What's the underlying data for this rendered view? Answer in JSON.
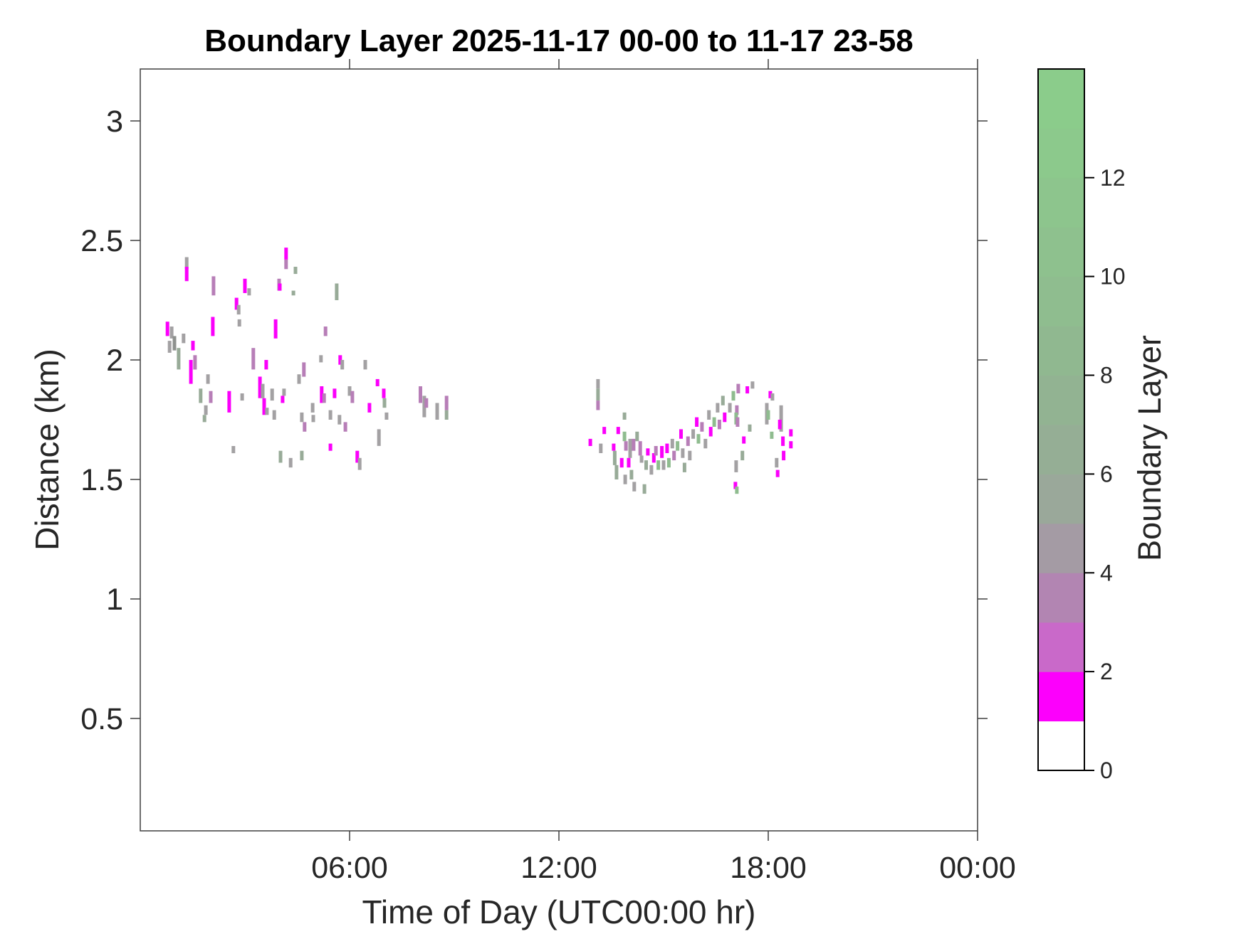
{
  "title": "Boundary Layer 2025-11-17 00-00 to 11-17 23-58",
  "axes": {
    "xlabel": "Time of Day (UTC00:00 hr)",
    "ylabel": "Distance (km)"
  },
  "chart_data": {
    "type": "scatter",
    "title": "Boundary Layer 2025-11-17 00-00 to 11-17 23-58",
    "xlabel": "Time of Day (UTC00:00 hr)",
    "ylabel": "Distance (km)",
    "x_axis": {
      "unit": "hours UTC",
      "range": [
        0,
        24
      ],
      "ticks": [
        {
          "hours": 6,
          "label": "06:00"
        },
        {
          "hours": 12,
          "label": "12:00"
        },
        {
          "hours": 18,
          "label": "18:00"
        },
        {
          "hours": 24,
          "label": "00:00"
        }
      ],
      "grid": false
    },
    "y_axis": {
      "unit": "km",
      "range": [
        0.03,
        3.22
      ],
      "ticks": [
        {
          "value": 0.5,
          "label": "0.5"
        },
        {
          "value": 1,
          "label": "1"
        },
        {
          "value": 1.5,
          "label": "1.5"
        },
        {
          "value": 2,
          "label": "2"
        },
        {
          "value": 2.5,
          "label": "2.5"
        },
        {
          "value": 3,
          "label": "3"
        }
      ],
      "grid": false
    },
    "colorbar": {
      "label": "Boundary Layer",
      "range": [
        0,
        14.2
      ],
      "ticks": [
        {
          "value": 0,
          "label": "0"
        },
        {
          "value": 2,
          "label": "2"
        },
        {
          "value": 4,
          "label": "4"
        },
        {
          "value": 6,
          "label": "6"
        },
        {
          "value": 8,
          "label": "8"
        },
        {
          "value": 10,
          "label": "10"
        },
        {
          "value": 12,
          "label": "12"
        }
      ],
      "bands": [
        {
          "from": 0,
          "to": 1,
          "color": "#ffffff"
        },
        {
          "from": 1,
          "to": 2,
          "color": "#fc00fc"
        },
        {
          "from": 2,
          "to": 3,
          "color": "#c969c9"
        },
        {
          "from": 3,
          "to": 4,
          "color": "#b285b2"
        },
        {
          "from": 4,
          "to": 5,
          "color": "#a49ba4"
        },
        {
          "from": 5,
          "to": 6,
          "color": "#9aa89a"
        },
        {
          "from": 6,
          "to": 7,
          "color": "#95ae95"
        },
        {
          "from": 7,
          "to": 8,
          "color": "#92b392"
        },
        {
          "from": 8,
          "to": 9,
          "color": "#90b890"
        },
        {
          "from": 9,
          "to": 10,
          "color": "#8fbd8f"
        },
        {
          "from": 10,
          "to": 11,
          "color": "#8ec18e"
        },
        {
          "from": 11,
          "to": 12,
          "color": "#8dc58d"
        },
        {
          "from": 12,
          "to": 13,
          "color": "#8cc98c"
        },
        {
          "from": 13,
          "to": 14.2,
          "color": "#8bcc8b"
        }
      ]
    },
    "palette": {
      "m": {
        "color": "#fb00fb",
        "approx_value": 1.5
      },
      "p": {
        "color": "#b77eb7",
        "approx_value": 3.0
      },
      "dg": {
        "color": "#8e918e",
        "approx_value": 4.5
      },
      "g": {
        "color": "#a3a1a3",
        "approx_value": 4.5
      },
      "gg": {
        "color": "#98ab98",
        "approx_value": 5.5
      },
      "gr": {
        "color": "#8fbc8f",
        "approx_value": 8.0
      }
    },
    "points_format": [
      "time_hours",
      "km_top",
      "km_bottom",
      "palette_key"
    ],
    "points": [
      [
        0.78,
        2.16,
        2.1,
        "m"
      ],
      [
        0.9,
        2.14,
        2.09,
        "g"
      ],
      [
        0.98,
        2.1,
        2.04,
        "dg"
      ],
      [
        1.24,
        2.11,
        2.07,
        "g"
      ],
      [
        0.84,
        2.08,
        2.03,
        "g"
      ],
      [
        1.1,
        2.05,
        1.96,
        "gg"
      ],
      [
        1.51,
        2.08,
        2.04,
        "m"
      ],
      [
        1.33,
        2.43,
        2.38,
        "g"
      ],
      [
        1.33,
        2.39,
        2.33,
        "m"
      ],
      [
        2.1,
        2.35,
        2.27,
        "p"
      ],
      [
        3.0,
        2.34,
        2.28,
        "m"
      ],
      [
        3.12,
        2.3,
        2.27,
        "g"
      ],
      [
        3.98,
        2.34,
        2.29,
        "p"
      ],
      [
        4.0,
        2.32,
        2.29,
        "m"
      ],
      [
        4.18,
        2.47,
        2.42,
        "m"
      ],
      [
        4.18,
        2.42,
        2.38,
        "p"
      ],
      [
        4.45,
        2.39,
        2.36,
        "gg"
      ],
      [
        4.39,
        2.29,
        2.27,
        "gg"
      ],
      [
        5.63,
        2.32,
        2.25,
        "gg"
      ],
      [
        2.76,
        2.26,
        2.21,
        "m"
      ],
      [
        2.82,
        2.23,
        2.19,
        "g"
      ],
      [
        2.08,
        2.18,
        2.1,
        "m"
      ],
      [
        2.84,
        2.17,
        2.14,
        "g"
      ],
      [
        3.88,
        2.17,
        2.09,
        "m"
      ],
      [
        1.45,
        2.0,
        1.9,
        "m"
      ],
      [
        1.57,
        2.02,
        1.96,
        "p"
      ],
      [
        1.94,
        1.94,
        1.9,
        "g"
      ],
      [
        1.73,
        1.88,
        1.82,
        "gg"
      ],
      [
        2.02,
        1.87,
        1.82,
        "p"
      ],
      [
        2.55,
        1.87,
        1.82,
        "m"
      ],
      [
        2.92,
        1.86,
        1.83,
        "g"
      ],
      [
        3.24,
        2.05,
        1.96,
        "p"
      ],
      [
        3.61,
        2.0,
        1.96,
        "m"
      ],
      [
        3.43,
        1.93,
        1.84,
        "m"
      ],
      [
        3.51,
        1.9,
        1.84,
        "g"
      ],
      [
        3.78,
        1.88,
        1.83,
        "g"
      ],
      [
        3.55,
        1.84,
        1.77,
        "m"
      ],
      [
        3.63,
        1.8,
        1.77,
        "g"
      ],
      [
        1.88,
        1.81,
        1.77,
        "g"
      ],
      [
        2.55,
        1.82,
        1.78,
        "m"
      ],
      [
        1.84,
        1.77,
        1.74,
        "gg"
      ],
      [
        3.84,
        1.79,
        1.75,
        "g"
      ],
      [
        5.31,
        2.14,
        2.1,
        "p"
      ],
      [
        5.18,
        2.02,
        1.99,
        "g"
      ],
      [
        5.73,
        2.02,
        1.98,
        "m"
      ],
      [
        5.79,
        2.0,
        1.96,
        "g"
      ],
      [
        6.45,
        2.0,
        1.96,
        "g"
      ],
      [
        4.69,
        1.99,
        1.93,
        "p"
      ],
      [
        4.55,
        1.94,
        1.9,
        "g"
      ],
      [
        4.12,
        1.88,
        1.85,
        "g"
      ],
      [
        4.08,
        1.85,
        1.82,
        "m"
      ],
      [
        5.2,
        1.89,
        1.82,
        "m"
      ],
      [
        5.27,
        1.86,
        1.82,
        "p"
      ],
      [
        5.57,
        1.88,
        1.84,
        "m"
      ],
      [
        4.94,
        1.82,
        1.78,
        "g"
      ],
      [
        4.96,
        1.77,
        1.74,
        "g"
      ],
      [
        5.45,
        1.79,
        1.75,
        "g"
      ],
      [
        5.71,
        1.77,
        1.73,
        "g"
      ],
      [
        5.88,
        1.74,
        1.7,
        "p"
      ],
      [
        6.0,
        1.89,
        1.85,
        "g"
      ],
      [
        6.08,
        1.87,
        1.82,
        "p"
      ],
      [
        6.57,
        1.82,
        1.78,
        "m"
      ],
      [
        6.8,
        1.92,
        1.89,
        "m"
      ],
      [
        6.98,
        1.88,
        1.84,
        "m"
      ],
      [
        7.0,
        1.84,
        1.8,
        "gg"
      ],
      [
        7.06,
        1.78,
        1.75,
        "g"
      ],
      [
        6.84,
        1.71,
        1.64,
        "g"
      ],
      [
        6.22,
        1.62,
        1.57,
        "m"
      ],
      [
        6.29,
        1.59,
        1.54,
        "g"
      ],
      [
        4.63,
        1.78,
        1.74,
        "g"
      ],
      [
        4.71,
        1.74,
        1.7,
        "p"
      ],
      [
        4.02,
        1.62,
        1.57,
        "gg"
      ],
      [
        4.31,
        1.59,
        1.55,
        "g"
      ],
      [
        4.63,
        1.62,
        1.58,
        "gg"
      ],
      [
        5.45,
        1.65,
        1.62,
        "m"
      ],
      [
        2.67,
        1.64,
        1.61,
        "g"
      ],
      [
        8.03,
        1.89,
        1.82,
        "p"
      ],
      [
        8.14,
        1.85,
        1.76,
        "g"
      ],
      [
        8.2,
        1.84,
        1.8,
        "p"
      ],
      [
        8.51,
        1.82,
        1.75,
        "g"
      ],
      [
        8.78,
        1.85,
        1.79,
        "p"
      ],
      [
        8.78,
        1.79,
        1.75,
        "gg"
      ],
      [
        13.12,
        1.92,
        1.88,
        "g"
      ],
      [
        13.12,
        1.88,
        1.83,
        "gg"
      ],
      [
        13.12,
        1.83,
        1.79,
        "p"
      ],
      [
        12.9,
        1.67,
        1.64,
        "m"
      ],
      [
        13.2,
        1.65,
        1.61,
        "g"
      ],
      [
        13.3,
        1.72,
        1.69,
        "m"
      ],
      [
        13.57,
        1.65,
        1.62,
        "m"
      ],
      [
        13.6,
        1.62,
        1.56,
        "gg"
      ],
      [
        13.7,
        1.72,
        1.69,
        "m"
      ],
      [
        13.88,
        1.78,
        1.75,
        "gg"
      ],
      [
        13.88,
        1.7,
        1.66,
        "gr"
      ],
      [
        13.92,
        1.66,
        1.62,
        "p"
      ],
      [
        14.04,
        1.67,
        1.59,
        "g"
      ],
      [
        13.8,
        1.59,
        1.55,
        "m"
      ],
      [
        14.14,
        1.67,
        1.62,
        "p"
      ],
      [
        14.24,
        1.7,
        1.66,
        "gg"
      ],
      [
        14.33,
        1.66,
        1.6,
        "p"
      ],
      [
        14.37,
        1.6,
        1.57,
        "g"
      ],
      [
        13.65,
        1.56,
        1.5,
        "gg"
      ],
      [
        13.9,
        1.52,
        1.48,
        "g"
      ],
      [
        14.0,
        1.59,
        1.55,
        "m"
      ],
      [
        14.08,
        1.54,
        1.5,
        "gg"
      ],
      [
        14.16,
        1.49,
        1.45,
        "g"
      ],
      [
        14.45,
        1.48,
        1.44,
        "gg"
      ],
      [
        14.5,
        1.58,
        1.54,
        "gg"
      ],
      [
        14.55,
        1.63,
        1.6,
        "m"
      ],
      [
        14.65,
        1.56,
        1.52,
        "g"
      ],
      [
        14.72,
        1.61,
        1.57,
        "m"
      ],
      [
        14.78,
        1.64,
        1.6,
        "p"
      ],
      [
        14.85,
        1.58,
        1.54,
        "gr"
      ],
      [
        14.95,
        1.64,
        1.59,
        "m"
      ],
      [
        15.0,
        1.58,
        1.54,
        "g"
      ],
      [
        15.1,
        1.65,
        1.61,
        "m"
      ],
      [
        15.15,
        1.59,
        1.55,
        "gr"
      ],
      [
        15.25,
        1.67,
        1.63,
        "g"
      ],
      [
        15.3,
        1.62,
        1.58,
        "p"
      ],
      [
        15.4,
        1.66,
        1.62,
        "gr"
      ],
      [
        15.5,
        1.71,
        1.67,
        "m"
      ],
      [
        15.55,
        1.63,
        1.59,
        "g"
      ],
      [
        15.6,
        1.57,
        1.53,
        "gg"
      ],
      [
        15.7,
        1.68,
        1.64,
        "p"
      ],
      [
        15.75,
        1.62,
        1.58,
        "g"
      ],
      [
        15.85,
        1.71,
        1.67,
        "g"
      ],
      [
        15.95,
        1.76,
        1.72,
        "m"
      ],
      [
        16.0,
        1.69,
        1.65,
        "gr"
      ],
      [
        16.1,
        1.74,
        1.7,
        "p"
      ],
      [
        16.2,
        1.67,
        1.63,
        "g"
      ],
      [
        16.3,
        1.79,
        1.75,
        "g"
      ],
      [
        16.35,
        1.72,
        1.68,
        "m"
      ],
      [
        16.45,
        1.76,
        1.72,
        "gr"
      ],
      [
        16.55,
        1.82,
        1.78,
        "g"
      ],
      [
        16.6,
        1.75,
        1.71,
        "p"
      ],
      [
        16.7,
        1.85,
        1.81,
        "gg"
      ],
      [
        16.75,
        1.78,
        1.74,
        "m"
      ],
      [
        16.9,
        1.82,
        1.78,
        "g"
      ],
      [
        17.0,
        1.87,
        1.83,
        "gr"
      ],
      [
        17.1,
        1.81,
        1.77,
        "p"
      ],
      [
        17.14,
        1.9,
        1.86,
        "p"
      ],
      [
        17.4,
        1.89,
        1.86,
        "m"
      ],
      [
        17.55,
        1.91,
        1.88,
        "g"
      ],
      [
        18.06,
        1.87,
        1.84,
        "m"
      ],
      [
        18.12,
        1.86,
        1.83,
        "g"
      ],
      [
        17.08,
        1.78,
        1.73,
        "gr"
      ],
      [
        17.12,
        1.76,
        1.72,
        "p"
      ],
      [
        17.47,
        1.73,
        1.7,
        "gg"
      ],
      [
        17.3,
        1.68,
        1.65,
        "m"
      ],
      [
        17.26,
        1.62,
        1.58,
        "gg"
      ],
      [
        17.08,
        1.58,
        1.53,
        "g"
      ],
      [
        17.06,
        1.49,
        1.46,
        "m"
      ],
      [
        17.1,
        1.47,
        1.44,
        "gr"
      ],
      [
        17.96,
        1.82,
        1.73,
        "g"
      ],
      [
        18.0,
        1.79,
        1.75,
        "gr"
      ],
      [
        18.1,
        1.7,
        1.67,
        "gr"
      ],
      [
        18.37,
        1.81,
        1.7,
        "g"
      ],
      [
        18.33,
        1.75,
        1.71,
        "m"
      ],
      [
        18.42,
        1.68,
        1.64,
        "m"
      ],
      [
        18.44,
        1.62,
        1.58,
        "m"
      ],
      [
        18.65,
        1.71,
        1.68,
        "m"
      ],
      [
        18.65,
        1.66,
        1.63,
        "m"
      ],
      [
        18.24,
        1.59,
        1.55,
        "g"
      ],
      [
        18.27,
        1.54,
        1.51,
        "m"
      ]
    ]
  },
  "style_colors": {
    "spine": "#3f3f3f",
    "text": "#262626",
    "colorbar_border": "#000000"
  }
}
